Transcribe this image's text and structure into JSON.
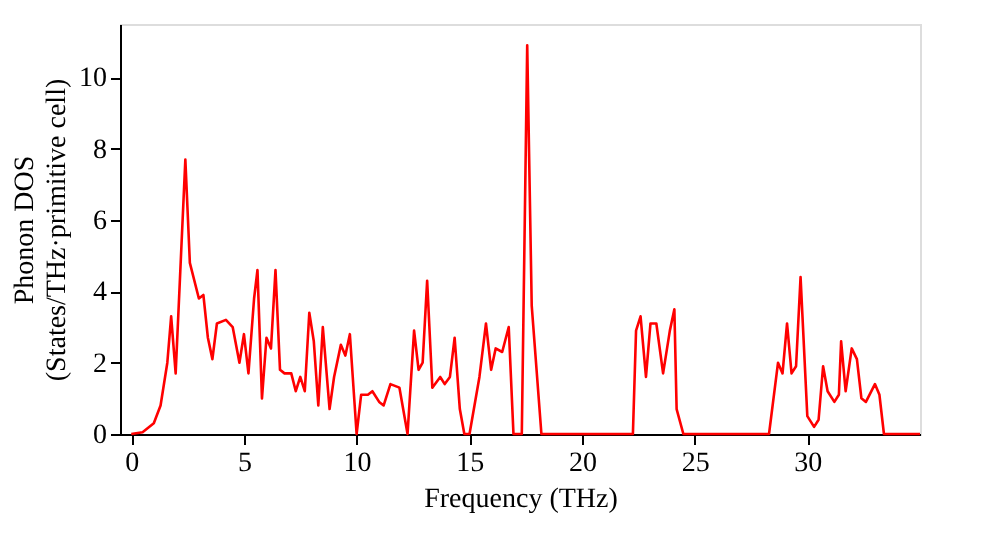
{
  "chart_data": {
    "type": "line",
    "xlabel": "Frequency (THz)",
    "ylabel": "Phonon DOS\n(States/THz·primitive cell)",
    "xlim": [
      -0.5,
      35
    ],
    "ylim": [
      0,
      11.5
    ],
    "xticks": [
      0,
      5,
      10,
      15,
      20,
      25,
      30
    ],
    "yticks": [
      0,
      2,
      4,
      6,
      8,
      10
    ],
    "grid": false,
    "marker": "none",
    "line_style": "solid",
    "series": [
      {
        "color": "#ff0000",
        "x": [
          0,
          0.5,
          1,
          1.3,
          1.6,
          1.77,
          1.97,
          2.4,
          2.6,
          3.0,
          3.2,
          3.4,
          3.6,
          3.8,
          4.2,
          4.5,
          4.8,
          5.0,
          5.2,
          5.45,
          5.6,
          5.8,
          6.0,
          6.2,
          6.4,
          6.6,
          6.8,
          7.1,
          7.3,
          7.5,
          7.7,
          7.9,
          8.1,
          8.3,
          8.5,
          8.8,
          9.0,
          9.3,
          9.5,
          9.7,
          10.0,
          10.2,
          10.5,
          10.7,
          11.0,
          11.2,
          11.5,
          11.9,
          12.26,
          12.55,
          12.75,
          12.93,
          13.13,
          13.36,
          13.71,
          13.91,
          14.14,
          14.35,
          14.58,
          14.78,
          15.01,
          15.45,
          15.74,
          15.97,
          16.17,
          16.46,
          16.75,
          16.96,
          17.33,
          17.57,
          17.77,
          18.2,
          22.26,
          22.4,
          22.6,
          22.84,
          23.04,
          23.3,
          23.6,
          23.9,
          24.1,
          24.2,
          24.5,
          28.3,
          28.7,
          28.9,
          29.1,
          29.3,
          29.5,
          29.7,
          30.0,
          30.3,
          30.5,
          30.7,
          30.9,
          31.2,
          31.4,
          31.5,
          31.7,
          31.97,
          32.2,
          32.4,
          32.6,
          33.0,
          33.2,
          33.4,
          35
        ],
        "values": [
          0,
          0.05,
          0.3,
          0.8,
          2.0,
          3.3,
          1.7,
          7.7,
          4.8,
          3.8,
          3.9,
          2.7,
          2.1,
          3.1,
          3.2,
          3.0,
          2.0,
          2.8,
          1.7,
          3.8,
          4.6,
          1.0,
          2.7,
          2.4,
          4.6,
          1.8,
          1.7,
          1.7,
          1.2,
          1.6,
          1.2,
          3.4,
          2.6,
          0.8,
          3.0,
          0.7,
          1.6,
          2.5,
          2.2,
          2.8,
          0,
          1.1,
          1.1,
          1.2,
          0.9,
          0.8,
          1.4,
          1.3,
          0,
          2.9,
          1.8,
          2.0,
          4.3,
          1.3,
          1.6,
          1.4,
          1.6,
          2.7,
          0.7,
          0,
          0,
          1.6,
          3.1,
          1.8,
          2.4,
          2.3,
          3.0,
          0,
          0,
          10.9,
          3.6,
          0,
          0,
          2.9,
          3.3,
          1.6,
          3.1,
          3.1,
          1.7,
          2.9,
          3.5,
          0.7,
          0,
          0,
          2.0,
          1.7,
          3.1,
          1.7,
          1.9,
          4.4,
          0.5,
          0.2,
          0.4,
          1.9,
          1.2,
          0.9,
          1.1,
          2.6,
          1.2,
          2.4,
          2.1,
          1.0,
          0.9,
          1.4,
          1.1,
          0,
          0
        ]
      }
    ]
  }
}
